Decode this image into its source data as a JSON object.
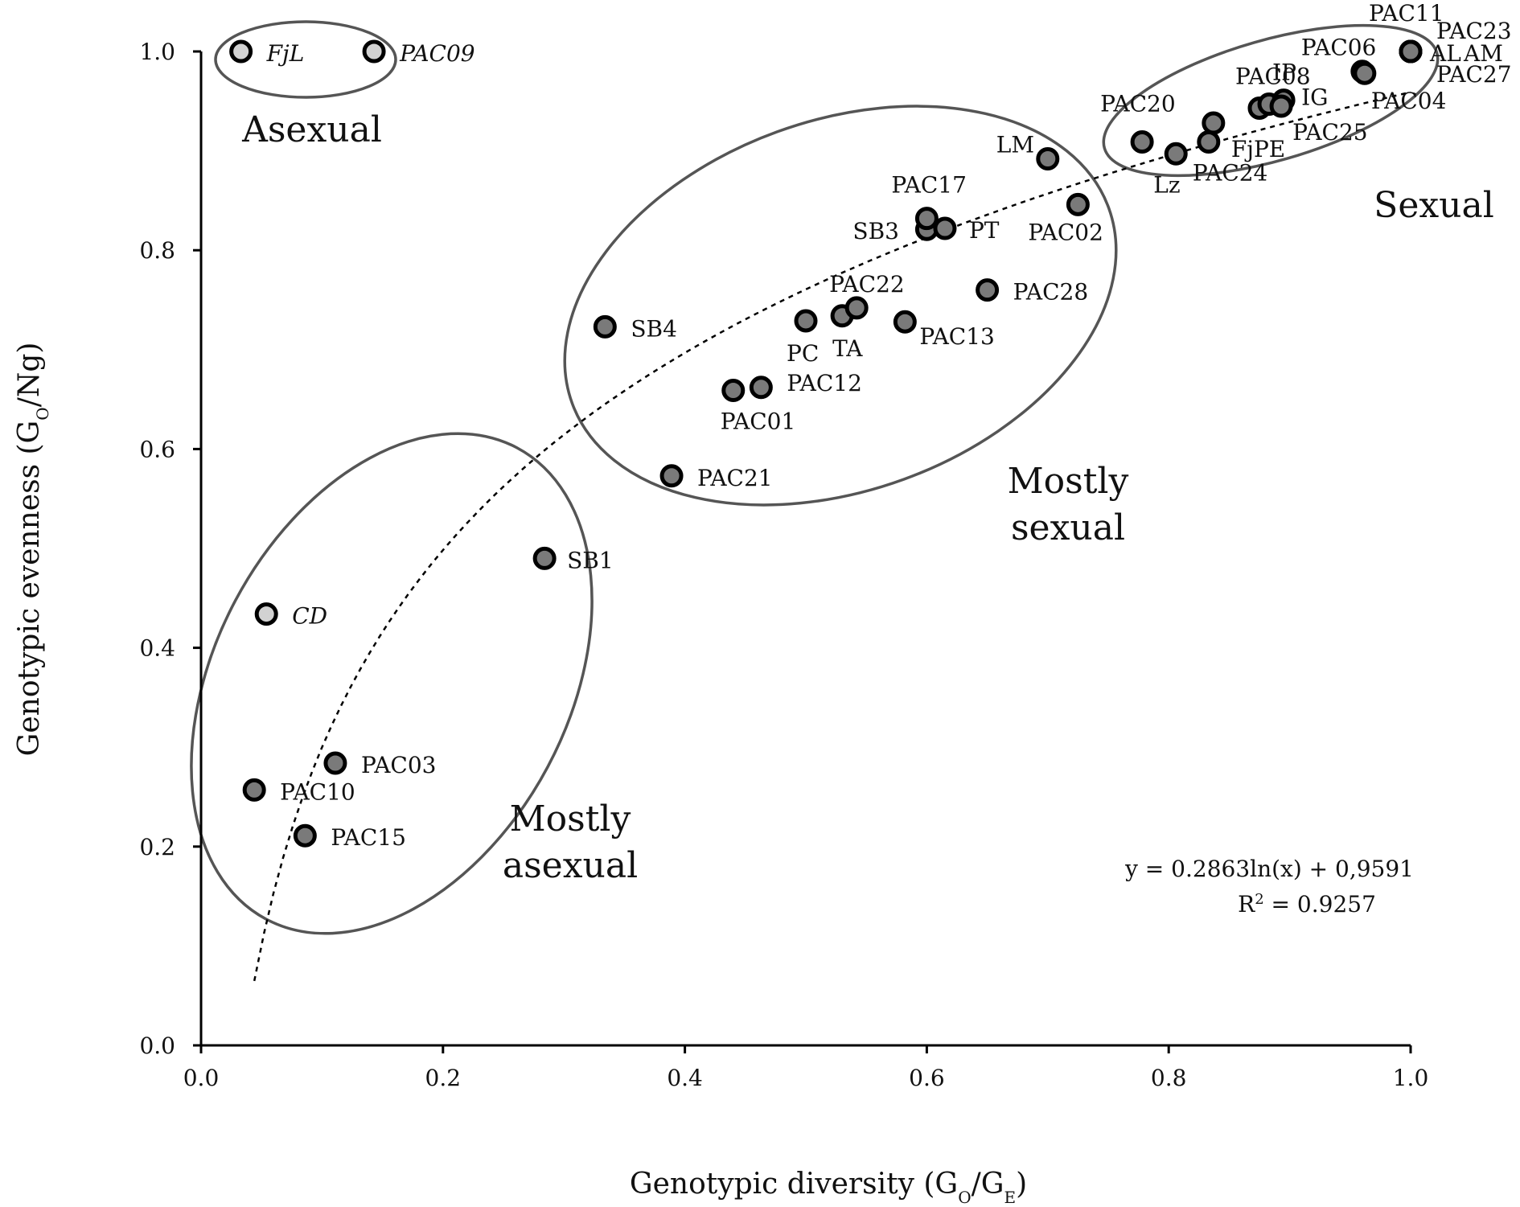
{
  "chart_data": {
    "type": "scatter",
    "xlabel": "Genotypic diversity (G",
    "xlabel_sub": [
      "O",
      "E"
    ],
    "xlabel_mid": "/G",
    "ylabel": "Genotypic evenness (G",
    "ylabel_sub": "O",
    "ylabel_end": "/Ng)",
    "xlim": [
      0,
      1
    ],
    "ylim": [
      0,
      1
    ],
    "x_ticks": [
      "0.0",
      "0.2",
      "0.4",
      "0.6",
      "0.8",
      "1.0"
    ],
    "y_ticks": [
      "0.0",
      "0.2",
      "0.4",
      "0.6",
      "0.8",
      "1.0"
    ],
    "grid": false,
    "colors": {
      "dark_point": "#7a7a7a",
      "light_point": "#d2d2d2",
      "ellipse": "#555555"
    },
    "points": [
      {
        "label": "FjL",
        "x": 0.033,
        "y": 1.0,
        "shade": "light",
        "italic": true
      },
      {
        "label": "PAC09",
        "x": 0.143,
        "y": 1.0,
        "shade": "light",
        "italic": true
      },
      {
        "label": "CD",
        "x": 0.054,
        "y": 0.434,
        "shade": "light",
        "italic": true
      },
      {
        "label": "PAC10",
        "x": 0.044,
        "y": 0.257,
        "shade": "dark"
      },
      {
        "label": "PAC03",
        "x": 0.111,
        "y": 0.284,
        "shade": "dark"
      },
      {
        "label": "PAC15",
        "x": 0.086,
        "y": 0.211,
        "shade": "dark"
      },
      {
        "label": "SB1",
        "x": 0.284,
        "y": 0.49,
        "shade": "dark"
      },
      {
        "label": "SB4",
        "x": 0.334,
        "y": 0.723,
        "shade": "dark"
      },
      {
        "label": "PAC21",
        "x": 0.389,
        "y": 0.573,
        "shade": "dark"
      },
      {
        "label": "PAC01",
        "x": 0.44,
        "y": 0.659,
        "shade": "dark"
      },
      {
        "label": "PAC12",
        "x": 0.463,
        "y": 0.662,
        "shade": "dark"
      },
      {
        "label": "PC",
        "x": 0.5,
        "y": 0.729,
        "shade": "dark"
      },
      {
        "label": "TA",
        "x": 0.53,
        "y": 0.734,
        "shade": "dark"
      },
      {
        "label": "PAC22",
        "x": 0.542,
        "y": 0.742,
        "shade": "dark"
      },
      {
        "label": "PAC13",
        "x": 0.582,
        "y": 0.728,
        "shade": "dark"
      },
      {
        "label": "SB3",
        "x": 0.6,
        "y": 0.821,
        "shade": "dark"
      },
      {
        "label": "PAC17",
        "x": 0.6,
        "y": 0.832,
        "shade": "dark"
      },
      {
        "label": "PT",
        "x": 0.615,
        "y": 0.822,
        "shade": "dark"
      },
      {
        "label": "PAC28",
        "x": 0.65,
        "y": 0.76,
        "shade": "dark"
      },
      {
        "label": "LM",
        "x": 0.7,
        "y": 0.892,
        "shade": "dark"
      },
      {
        "label": "PAC02",
        "x": 0.725,
        "y": 0.846,
        "shade": "dark"
      },
      {
        "label": "PAC20",
        "x": 0.778,
        "y": 0.909,
        "shade": "dark"
      },
      {
        "label": "Lz",
        "x": 0.806,
        "y": 0.897,
        "shade": "dark"
      },
      {
        "label": "PAC24",
        "x": 0.833,
        "y": 0.909,
        "shade": "dark"
      },
      {
        "label": "FjPE",
        "x": 0.837,
        "y": 0.928,
        "shade": "dark"
      },
      {
        "label": "PAC08",
        "x": 0.875,
        "y": 0.943,
        "shade": "dark"
      },
      {
        "label": "IP",
        "x": 0.883,
        "y": 0.947,
        "shade": "dark"
      },
      {
        "label": "IG",
        "x": 0.895,
        "y": 0.951,
        "shade": "dark"
      },
      {
        "label": "PAC25",
        "x": 0.893,
        "y": 0.945,
        "shade": "dark"
      },
      {
        "label": "PAC06",
        "x": 0.96,
        "y": 0.98,
        "shade": "dark"
      },
      {
        "label": "PAC04",
        "x": 0.962,
        "y": 0.978,
        "shade": "dark"
      },
      {
        "label": "PAC11",
        "x": 1.0,
        "y": 1.0,
        "shade": "dark"
      },
      {
        "label": "PAC23",
        "x": 1.0,
        "y": 1.0,
        "shade": "dark"
      },
      {
        "label": "AL",
        "x": 1.0,
        "y": 1.0,
        "shade": "dark"
      },
      {
        "label": "AM",
        "x": 1.0,
        "y": 1.0,
        "shade": "dark"
      },
      {
        "label": "PAC27",
        "x": 1.0,
        "y": 1.0,
        "shade": "dark"
      }
    ],
    "groups": [
      {
        "name": "Asexual",
        "lines": [
          "Asexual"
        ]
      },
      {
        "name": "Mostly asexual",
        "lines": [
          "Mostly",
          "asexual"
        ]
      },
      {
        "name": "Mostly sexual",
        "lines": [
          "Mostly",
          "sexual"
        ]
      },
      {
        "name": "Sexual",
        "lines": [
          "Sexual"
        ]
      }
    ],
    "trendline": {
      "model": "logarithmic",
      "a": 0.2863,
      "b": 0.9591,
      "x_range": [
        0.044,
        1.0
      ],
      "equation": "y = 0.2863ln(x) + 0,9591",
      "r2_prefix": "R",
      "r2_sup": "2",
      "r2_value": " = 0.9257"
    }
  }
}
